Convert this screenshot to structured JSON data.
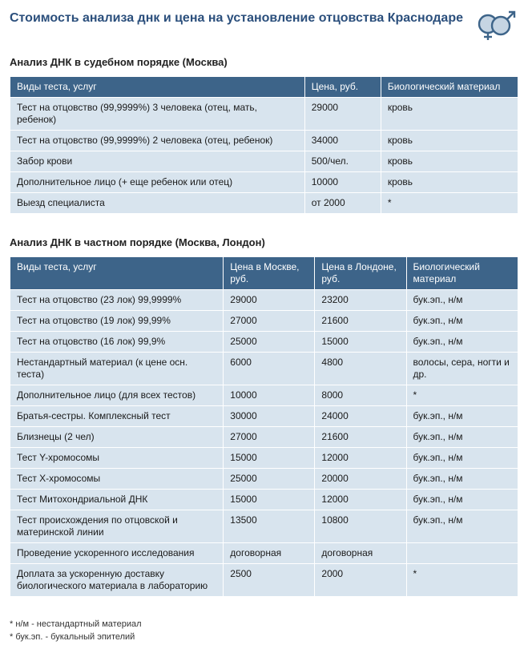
{
  "page": {
    "title": "Стоимость анализа днк и цена на установление отцовства Краснодаре",
    "title_color": "#2b4f7c"
  },
  "icon": {
    "name": "gender-symbols-icon",
    "stroke": "#3d6489",
    "fill_light": "#a8bfd4"
  },
  "colors": {
    "header_bg": "#3d6489",
    "header_text": "#ffffff",
    "cell_bg": "#d8e4ee",
    "border": "#ffffff"
  },
  "table1": {
    "heading": "Анализ ДНК в судебном порядке (Москва)",
    "columns": [
      "Виды теста, услуг",
      "Цена, руб.",
      "Биологический материал"
    ],
    "col_widths": [
      "58%",
      "15%",
      "27%"
    ],
    "rows": [
      [
        "Тест на отцовство (99,9999%) 3 человека (отец, мать, ребенок)",
        "29000",
        "кровь"
      ],
      [
        "Тест на отцовство (99,9999%) 2 человека (отец, ребенок)",
        "34000",
        "кровь"
      ],
      [
        "Забор крови",
        "500/чел.",
        "кровь"
      ],
      [
        "Дополнительное лицо (+ еще ребенок или отец)",
        "10000",
        "кровь"
      ],
      [
        "Выезд специалиста",
        "от 2000",
        "*"
      ]
    ]
  },
  "table2": {
    "heading": "Анализ ДНК в частном порядке (Москва, Лондон)",
    "columns": [
      "Виды теста, услуг",
      "Цена в Москве, руб.",
      "Цена в Лондоне, руб.",
      "Биологический материал"
    ],
    "col_widths": [
      "42%",
      "18%",
      "18%",
      "22%"
    ],
    "rows": [
      [
        "Тест на отцовство (23 лок) 99,9999%",
        "29000",
        "23200",
        "бук.эп., н/м"
      ],
      [
        "Тест на отцовство (19 лок) 99,99%",
        "27000",
        "21600",
        "бук.эп., н/м"
      ],
      [
        "Тест на отцовство (16 лок) 99,9%",
        "25000",
        "15000",
        "бук.эп., н/м"
      ],
      [
        "Нестандартный материал (к цене осн. теста)",
        "6000",
        "4800",
        "волосы, сера, ногти и др."
      ],
      [
        "Дополнительное лицо (для всех тестов)",
        "10000",
        "8000",
        "*"
      ],
      [
        "Братья-сестры. Комплексный тест",
        "30000",
        "24000",
        "бук.эп., н/м"
      ],
      [
        "Близнецы (2 чел)",
        "27000",
        "21600",
        "бук.эп., н/м"
      ],
      [
        "Тест Y-хромосомы",
        "15000",
        "12000",
        "бук.эп., н/м"
      ],
      [
        "Тест X-хромосомы",
        "25000",
        "20000",
        "бук.эп., н/м"
      ],
      [
        "Тест Митохондриальной ДНК",
        "15000",
        "12000",
        "бук.эп., н/м"
      ],
      [
        "Тест происхождения по отцовской и материнской линии",
        "13500",
        "10800",
        "бук.эп., н/м"
      ],
      [
        "Проведение ускоренного исследования",
        "договорная",
        "договорная",
        ""
      ],
      [
        "Доплата за ускоренную доставку биологического материала в лабораторию",
        "2500",
        "2000",
        "*"
      ]
    ]
  },
  "footnotes": [
    "* н/м - нестандартный материал",
    "* бук.эп. - букальный эпителий"
  ]
}
